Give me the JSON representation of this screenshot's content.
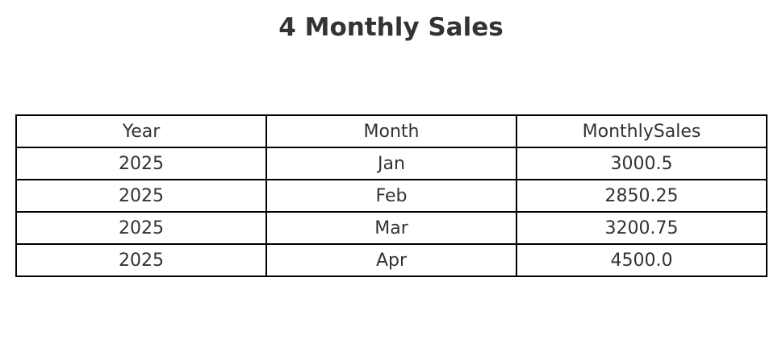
{
  "chart_data": {
    "type": "table",
    "title": "4 Monthly Sales",
    "columns": [
      "Year",
      "Month",
      "MonthlySales"
    ],
    "rows": [
      [
        "2025",
        "Jan",
        "3000.5"
      ],
      [
        "2025",
        "Feb",
        "2850.25"
      ],
      [
        "2025",
        "Mar",
        "3200.75"
      ],
      [
        "2025",
        "Apr",
        "4500.0"
      ]
    ]
  }
}
